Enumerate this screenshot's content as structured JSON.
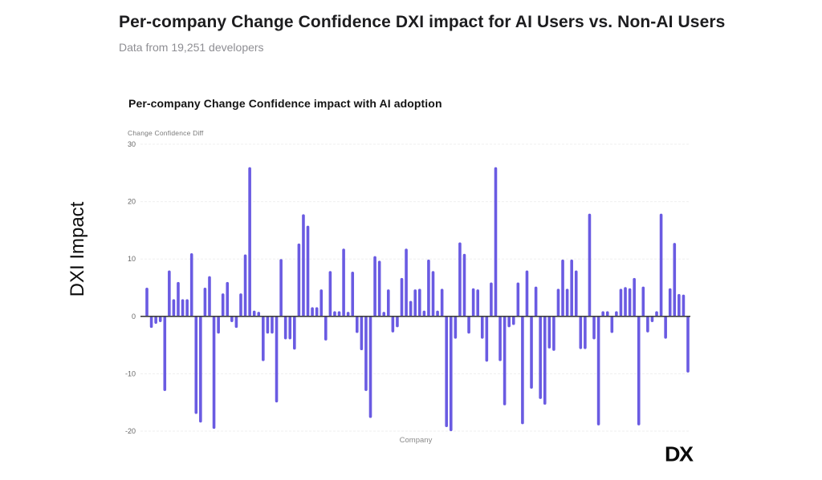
{
  "header": {
    "title": "Per-company Change Confidence DXI impact for AI Users vs. Non-AI Users",
    "subtitle": "Data from 19,251 developers"
  },
  "side_label": "DXI Impact",
  "logo_text": "DX",
  "chart_data": {
    "type": "bar",
    "title": "Per-company Change Confidence impact with AI adoption",
    "ylabel": "Change Confidence Diff",
    "xlabel": "Company",
    "ylim": [
      -20,
      30
    ],
    "yticks": [
      30,
      20,
      10,
      0,
      -10,
      -20
    ],
    "grid": true,
    "legend_position": "none",
    "bar_color": "#6a5be2",
    "axis_line_color": "#3d3d3d",
    "grid_color": "#efefef",
    "tick_label_color": "#666666",
    "values": [
      5,
      -2,
      -1.3,
      -1,
      -13,
      8,
      3,
      6,
      3,
      3,
      11,
      -17,
      -18.5,
      5,
      7,
      -19.6,
      -3,
      4,
      6,
      -1,
      -2,
      4,
      10.8,
      26,
      1,
      0.8,
      -7.8,
      -3,
      -3,
      -15,
      10,
      -4,
      -4,
      -5.8,
      12.7,
      17.8,
      15.8,
      1.6,
      1.6,
      4.7,
      -4.2,
      7.9,
      0.9,
      0.9,
      11.8,
      0.8,
      7.8,
      -2.9,
      -5.9,
      -13,
      -17.7,
      10.5,
      9.7,
      0.8,
      4.7,
      -2.8,
      -1.9,
      6.7,
      11.8,
      2.7,
      4.7,
      4.8,
      1,
      9.9,
      7.9,
      1,
      4.8,
      -19.3,
      -20,
      -3.9,
      12.9,
      10.9,
      -3,
      4.9,
      4.7,
      -3.9,
      -7.9,
      5.9,
      26,
      -7.8,
      -15.5,
      -1.9,
      -1.5,
      5.9,
      -18.8,
      8,
      -12.6,
      5.2,
      -14.4,
      -15.4,
      -5.6,
      -6,
      4.8,
      9.9,
      4.8,
      9.9,
      8,
      -5.7,
      -5.7,
      17.9,
      -4,
      -19,
      0.9,
      0.9,
      -2.9,
      0.9,
      4.8,
      5.1,
      4.9,
      6.7,
      -19,
      5.2,
      -2.8,
      -1,
      0.9,
      17.9,
      -3.9,
      4.9,
      12.8,
      3.9,
      3.8,
      -9.8
    ]
  }
}
